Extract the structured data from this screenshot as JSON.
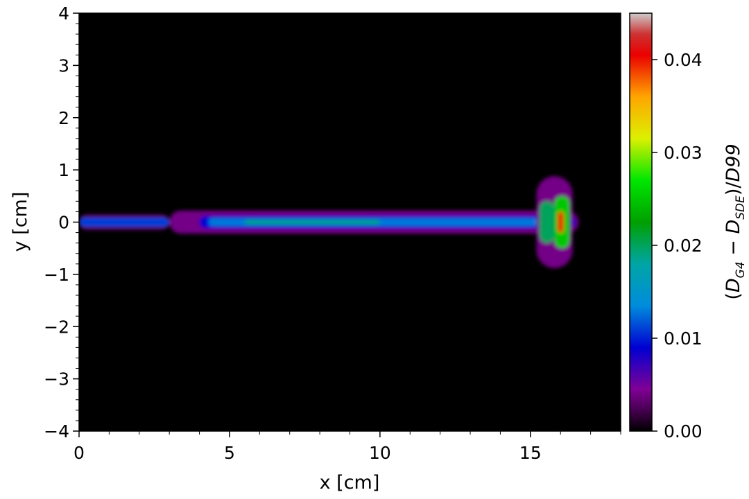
{
  "chart_data": {
    "type": "heatmap",
    "title": "",
    "xlabel": "x [cm]",
    "ylabel": "y [cm]",
    "colorbar_label": "(D_G4 − D_SDE)/D99",
    "colorbar_label_parts": {
      "open": "(",
      "d1": "D",
      "sub1": "G4",
      "minus": " − ",
      "d2": "D",
      "sub2": "SDE",
      "close": ")/",
      "tail": "D99"
    },
    "xlim": [
      0,
      18
    ],
    "ylim": [
      -4,
      4
    ],
    "clim": [
      0,
      0.045
    ],
    "colormap": "nipy_spectral",
    "background_value": 0,
    "x_ticks": [
      {
        "value": 0,
        "label": "0"
      },
      {
        "value": 5,
        "label": "5"
      },
      {
        "value": 10,
        "label": "10"
      },
      {
        "value": 15,
        "label": "15"
      }
    ],
    "y_ticks": [
      {
        "value": 4,
        "label": "4"
      },
      {
        "value": 3,
        "label": "3"
      },
      {
        "value": 2,
        "label": "2"
      },
      {
        "value": 1,
        "label": "1"
      },
      {
        "value": 0,
        "label": "0"
      },
      {
        "value": -1,
        "label": "−1"
      },
      {
        "value": -2,
        "label": "−2"
      },
      {
        "value": -3,
        "label": "−3"
      },
      {
        "value": -4,
        "label": "−4"
      }
    ],
    "colorbar_ticks": [
      {
        "value": 0.0,
        "label": "0.00"
      },
      {
        "value": 0.01,
        "label": "0.01"
      },
      {
        "value": 0.02,
        "label": "0.02"
      },
      {
        "value": 0.03,
        "label": "0.03"
      },
      {
        "value": 0.04,
        "label": "0.04"
      }
    ],
    "field_regions": [
      {
        "x": [
          0.0,
          3.0
        ],
        "y": [
          -0.15,
          0.15
        ],
        "value": 0.003
      },
      {
        "x": [
          0.0,
          3.0
        ],
        "y": [
          -0.09,
          0.09
        ],
        "value": 0.011
      },
      {
        "x": [
          3.0,
          16.6
        ],
        "y": [
          -0.22,
          0.22
        ],
        "value": 0.004
      },
      {
        "x": [
          4.0,
          16.5
        ],
        "y": [
          -0.12,
          0.12
        ],
        "value": 0.009
      },
      {
        "x": [
          4.3,
          16.4
        ],
        "y": [
          -0.07,
          0.07
        ],
        "value": 0.013
      },
      {
        "x": [
          5.5,
          10.0
        ],
        "y": [
          -0.04,
          0.04
        ],
        "value": 0.019
      },
      {
        "x": [
          15.2,
          16.4
        ],
        "y": [
          -0.88,
          0.88
        ],
        "value": 0.004
      },
      {
        "x": [
          15.3,
          15.8
        ],
        "y": [
          -0.4,
          0.4
        ],
        "value": 0.02
      },
      {
        "x": [
          15.8,
          16.3
        ],
        "y": [
          -0.5,
          0.5
        ],
        "value": 0.025
      },
      {
        "x": [
          15.9,
          16.1
        ],
        "y": [
          -0.2,
          0.2
        ],
        "value": 0.04
      }
    ]
  }
}
